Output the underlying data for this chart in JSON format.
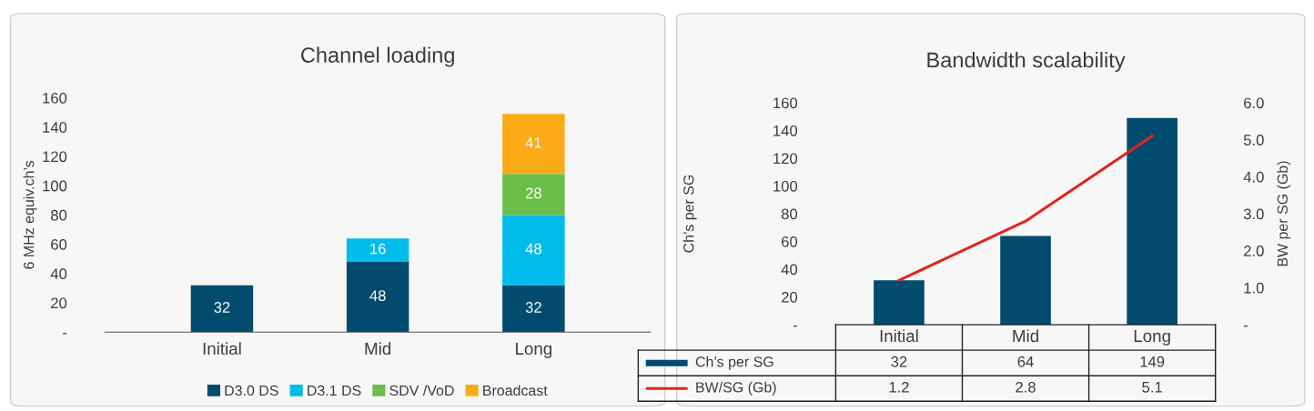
{
  "chart_data": [
    {
      "type": "bar",
      "title": "Channel loading",
      "ylabel": "6 MHz equiv.ch’s",
      "categories": [
        "Initial",
        "Mid",
        "Long"
      ],
      "stacked": true,
      "series": [
        {
          "name": "D3.0 DS",
          "color": "#004b6e",
          "values": [
            32,
            48,
            32
          ]
        },
        {
          "name": "D3.1 DS",
          "color": "#00bceb",
          "values": [
            null,
            16,
            48
          ]
        },
        {
          "name": "SDV /VoD",
          "color": "#6abf4b",
          "values": [
            null,
            null,
            28
          ]
        },
        {
          "name": "Broadcast",
          "color": "#fbab18",
          "values": [
            null,
            null,
            41
          ]
        }
      ],
      "ylim": [
        0,
        160
      ],
      "yticks": [
        {
          "value": 0,
          "label": "-"
        },
        20,
        40,
        60,
        80,
        100,
        120,
        140,
        160
      ],
      "data_labels": true,
      "legend": "bottom",
      "grid": false
    },
    {
      "type": "bar",
      "title": "Bandwidth scalability",
      "ylabel": "Ch’s per SG",
      "y2label": "BW per SG (Gb)",
      "categories": [
        "Initial",
        "Mid",
        "Long"
      ],
      "series": [
        {
          "name": "Ch’s per SG",
          "color": "#004b6e",
          "values": [
            32,
            64,
            149
          ]
        },
        {
          "name": "BW/SG (Gb)",
          "type": "line",
          "axis": "y2",
          "color": "#e2231a",
          "values": [
            1.2,
            2.8,
            5.1
          ]
        }
      ],
      "ylim": [
        0,
        160
      ],
      "yticks": [
        {
          "value": 0,
          "label": "-"
        },
        20,
        40,
        60,
        80,
        100,
        120,
        140,
        160
      ],
      "y2lim": [
        0,
        6
      ],
      "y2ticks": [
        {
          "value": 0,
          "label": "-"
        },
        {
          "value": 1,
          "label": "1.0"
        },
        {
          "value": 2,
          "label": "2.0"
        },
        {
          "value": 3,
          "label": "3.0"
        },
        {
          "value": 4,
          "label": "4.0"
        },
        {
          "value": 5,
          "label": "5.0"
        },
        {
          "value": 6,
          "label": "6.0"
        }
      ],
      "data_labels": true,
      "legend": "bottom",
      "grid": false,
      "marker": "none",
      "line_style": "solid"
    }
  ]
}
